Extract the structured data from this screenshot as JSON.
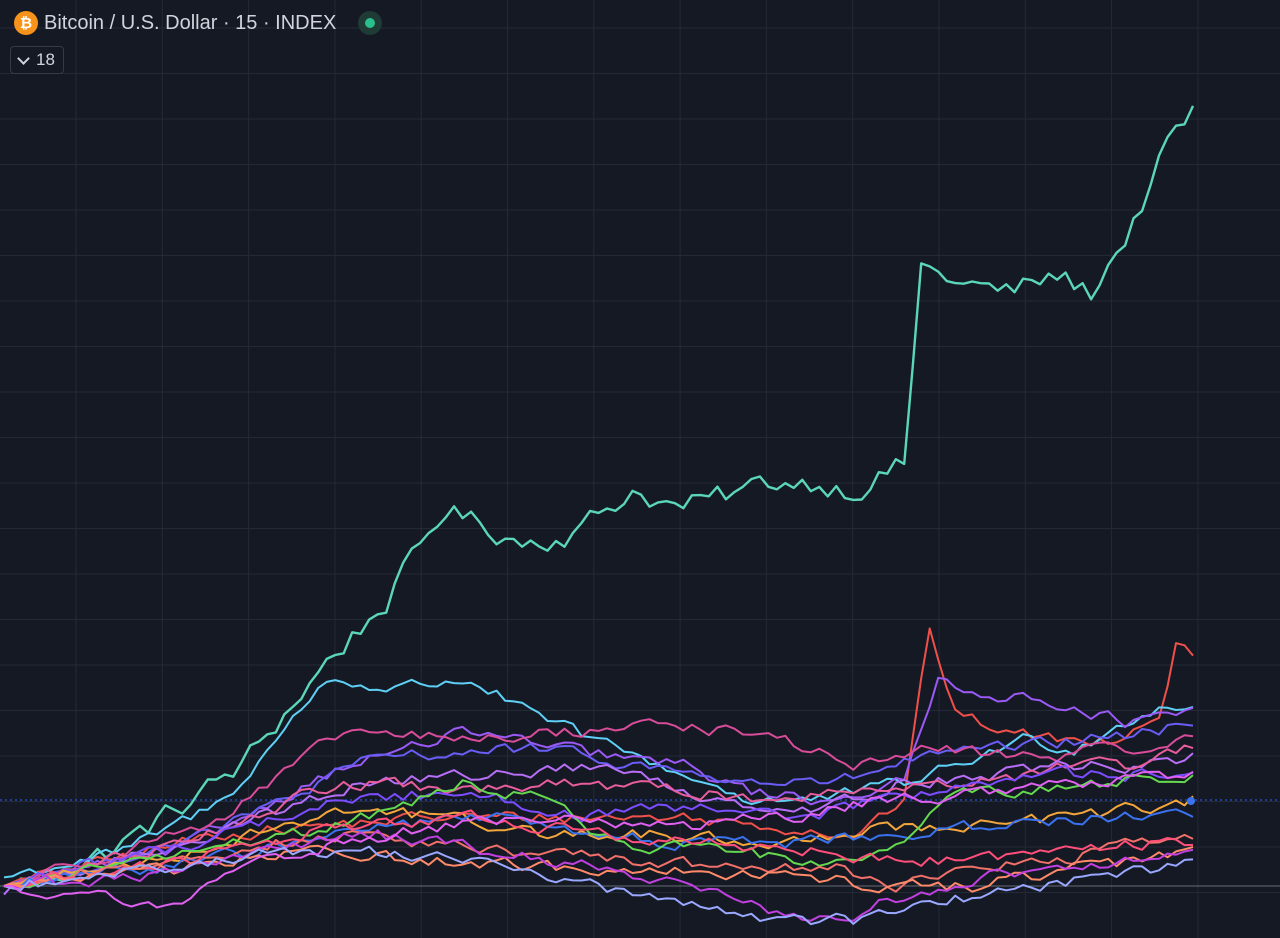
{
  "header": {
    "title": "Bitcoin / U.S. Dollar · 15 · INDEX",
    "logo_glyph": "₿",
    "status_color": "#2bbf8e"
  },
  "indicators_toggle": {
    "count": "18",
    "icon": "chevron-down-icon"
  },
  "colors": {
    "background": "#151924",
    "grid": "#242936",
    "baseline": "#8a8f99",
    "reference_line": "#2962ff"
  },
  "chart_data": {
    "type": "line",
    "title": "",
    "grid": true,
    "n_points": 140,
    "ylim": [
      0,
      100
    ],
    "series": [
      {
        "color": "#5bd6b8",
        "keypoints": [
          [
            0,
            0
          ],
          [
            8,
            2
          ],
          [
            14,
            5
          ],
          [
            22,
            10
          ],
          [
            28,
            14
          ],
          [
            38,
            26
          ],
          [
            45,
            33
          ],
          [
            52,
            44
          ],
          [
            56,
            42
          ],
          [
            61,
            40
          ],
          [
            67,
            41
          ],
          [
            74,
            46
          ],
          [
            79,
            44
          ],
          [
            84,
            45
          ],
          [
            90,
            47
          ],
          [
            95,
            47
          ],
          [
            100,
            46
          ],
          [
            106,
            49
          ],
          [
            108,
            72
          ],
          [
            113,
            70
          ],
          [
            118,
            69
          ],
          [
            124,
            71
          ],
          [
            128,
            69
          ],
          [
            133,
            77
          ],
          [
            137,
            86
          ],
          [
            140,
            90
          ]
        ]
      },
      {
        "color": "#f0504a",
        "keypoints": [
          [
            0,
            0
          ],
          [
            25,
            6
          ],
          [
            50,
            8
          ],
          [
            80,
            8
          ],
          [
            100,
            6
          ],
          [
            106,
            10
          ],
          [
            109,
            30
          ],
          [
            112,
            20
          ],
          [
            118,
            18
          ],
          [
            124,
            17
          ],
          [
            130,
            17
          ],
          [
            136,
            20
          ],
          [
            138,
            28
          ],
          [
            140,
            27
          ]
        ]
      },
      {
        "color": "#5fd0f5",
        "keypoints": [
          [
            0,
            1
          ],
          [
            14,
            4
          ],
          [
            26,
            10
          ],
          [
            38,
            24
          ],
          [
            45,
            23
          ],
          [
            55,
            24
          ],
          [
            62,
            20
          ],
          [
            72,
            16
          ],
          [
            80,
            13
          ],
          [
            88,
            10
          ],
          [
            96,
            10
          ],
          [
            106,
            12
          ],
          [
            112,
            14
          ],
          [
            120,
            17
          ],
          [
            126,
            16
          ],
          [
            132,
            19
          ],
          [
            136,
            21
          ],
          [
            140,
            21
          ]
        ]
      },
      {
        "color": "#9b59f5",
        "keypoints": [
          [
            0,
            0
          ],
          [
            20,
            4
          ],
          [
            40,
            14
          ],
          [
            55,
            18
          ],
          [
            65,
            16
          ],
          [
            80,
            14
          ],
          [
            88,
            11
          ],
          [
            96,
            10
          ],
          [
            106,
            12
          ],
          [
            110,
            24
          ],
          [
            118,
            22
          ],
          [
            126,
            21
          ],
          [
            132,
            19
          ],
          [
            140,
            20
          ]
        ]
      },
      {
        "color": "#6a5df5",
        "keypoints": [
          [
            0,
            0
          ],
          [
            24,
            6
          ],
          [
            44,
            15
          ],
          [
            62,
            16
          ],
          [
            75,
            14
          ],
          [
            88,
            12
          ],
          [
            98,
            12
          ],
          [
            108,
            15
          ],
          [
            118,
            16
          ],
          [
            128,
            17
          ],
          [
            136,
            18
          ],
          [
            140,
            19
          ]
        ]
      },
      {
        "color": "#d94c9a",
        "keypoints": [
          [
            0,
            0
          ],
          [
            26,
            8
          ],
          [
            40,
            18
          ],
          [
            55,
            17
          ],
          [
            68,
            18
          ],
          [
            78,
            19
          ],
          [
            92,
            17
          ],
          [
            100,
            14
          ],
          [
            110,
            16
          ],
          [
            122,
            15
          ],
          [
            132,
            16
          ],
          [
            140,
            17
          ]
        ]
      },
      {
        "color": "#b86ef7",
        "keypoints": [
          [
            0,
            -1
          ],
          [
            24,
            6
          ],
          [
            42,
            12
          ],
          [
            58,
            13
          ],
          [
            70,
            14
          ],
          [
            84,
            10
          ],
          [
            96,
            9
          ],
          [
            106,
            12
          ],
          [
            116,
            13
          ],
          [
            126,
            14
          ],
          [
            134,
            14
          ],
          [
            140,
            15
          ]
        ]
      },
      {
        "color": "#e85d9c",
        "keypoints": [
          [
            0,
            0
          ],
          [
            20,
            5
          ],
          [
            40,
            12
          ],
          [
            56,
            11
          ],
          [
            68,
            12
          ],
          [
            80,
            11
          ],
          [
            92,
            10
          ],
          [
            104,
            12
          ],
          [
            116,
            12
          ],
          [
            126,
            14
          ],
          [
            134,
            14
          ],
          [
            140,
            16
          ]
        ]
      },
      {
        "color": "#7c4dff",
        "keypoints": [
          [
            0,
            0
          ],
          [
            22,
            5
          ],
          [
            40,
            10
          ],
          [
            55,
            11
          ],
          [
            68,
            8
          ],
          [
            80,
            9
          ],
          [
            94,
            8
          ],
          [
            104,
            10
          ],
          [
            114,
            12
          ],
          [
            124,
            13
          ],
          [
            134,
            13
          ],
          [
            140,
            13
          ]
        ]
      },
      {
        "color": "#f3a63c",
        "keypoints": [
          [
            0,
            0
          ],
          [
            22,
            4
          ],
          [
            40,
            9
          ],
          [
            52,
            8
          ],
          [
            64,
            6
          ],
          [
            76,
            6
          ],
          [
            90,
            5
          ],
          [
            104,
            7
          ],
          [
            116,
            7
          ],
          [
            126,
            8
          ],
          [
            134,
            9
          ],
          [
            140,
            10
          ]
        ]
      },
      {
        "color": "#3a72f0",
        "keypoints": [
          [
            0,
            0
          ],
          [
            24,
            3
          ],
          [
            44,
            7
          ],
          [
            58,
            8
          ],
          [
            68,
            6
          ],
          [
            80,
            5
          ],
          [
            92,
            5
          ],
          [
            104,
            6
          ],
          [
            116,
            7
          ],
          [
            128,
            8
          ],
          [
            136,
            8
          ],
          [
            140,
            8
          ]
        ]
      },
      {
        "color": "#64d84e",
        "keypoints": [
          [
            0,
            0
          ],
          [
            22,
            4
          ],
          [
            40,
            7
          ],
          [
            54,
            12
          ],
          [
            64,
            10
          ],
          [
            72,
            5
          ],
          [
            84,
            4
          ],
          [
            96,
            3
          ],
          [
            106,
            5
          ],
          [
            112,
            11
          ],
          [
            120,
            11
          ],
          [
            130,
            12
          ],
          [
            140,
            13
          ]
        ]
      },
      {
        "color": "#f2706a",
        "keypoints": [
          [
            0,
            0
          ],
          [
            20,
            3
          ],
          [
            38,
            6
          ],
          [
            50,
            5
          ],
          [
            62,
            4
          ],
          [
            74,
            3
          ],
          [
            86,
            2
          ],
          [
            98,
            2
          ],
          [
            106,
            0
          ],
          [
            114,
            2
          ],
          [
            124,
            3
          ],
          [
            134,
            5
          ],
          [
            140,
            6
          ]
        ]
      },
      {
        "color": "#ff4f7a",
        "keypoints": [
          [
            0,
            0
          ],
          [
            22,
            3
          ],
          [
            40,
            7
          ],
          [
            56,
            8
          ],
          [
            70,
            6
          ],
          [
            82,
            5
          ],
          [
            96,
            4
          ],
          [
            104,
            3
          ],
          [
            114,
            3
          ],
          [
            124,
            4
          ],
          [
            134,
            5
          ],
          [
            140,
            5
          ]
        ]
      },
      {
        "color": "#ff8a6a",
        "keypoints": [
          [
            0,
            0
          ],
          [
            20,
            2
          ],
          [
            36,
            4
          ],
          [
            52,
            3
          ],
          [
            66,
            2
          ],
          [
            80,
            2
          ],
          [
            94,
            1
          ],
          [
            104,
            0
          ],
          [
            114,
            0
          ],
          [
            126,
            2
          ],
          [
            134,
            3
          ],
          [
            140,
            4
          ]
        ]
      },
      {
        "color": "#c040e0",
        "keypoints": [
          [
            0,
            0
          ],
          [
            16,
            1
          ],
          [
            30,
            4
          ],
          [
            44,
            6
          ],
          [
            58,
            4
          ],
          [
            70,
            2
          ],
          [
            80,
            0
          ],
          [
            90,
            -3
          ],
          [
            98,
            -4
          ],
          [
            106,
            -1
          ],
          [
            116,
            1
          ],
          [
            124,
            2
          ],
          [
            134,
            3
          ],
          [
            140,
            5
          ]
        ]
      },
      {
        "color": "#9aa8ff",
        "keypoints": [
          [
            0,
            0
          ],
          [
            18,
            2
          ],
          [
            32,
            4
          ],
          [
            46,
            4
          ],
          [
            58,
            2
          ],
          [
            70,
            0
          ],
          [
            80,
            -2
          ],
          [
            92,
            -4
          ],
          [
            100,
            -4
          ],
          [
            110,
            -2
          ],
          [
            120,
            0
          ],
          [
            130,
            1
          ],
          [
            136,
            2
          ],
          [
            140,
            3
          ]
        ]
      },
      {
        "color": "#e060f0",
        "keypoints": [
          [
            0,
            0
          ],
          [
            10,
            -1
          ],
          [
            20,
            -2
          ],
          [
            28,
            2
          ],
          [
            40,
            5
          ],
          [
            52,
            7
          ],
          [
            66,
            8
          ],
          [
            80,
            7
          ],
          [
            92,
            8
          ],
          [
            104,
            10
          ],
          [
            116,
            11
          ],
          [
            128,
            12
          ],
          [
            140,
            13
          ]
        ]
      }
    ]
  }
}
